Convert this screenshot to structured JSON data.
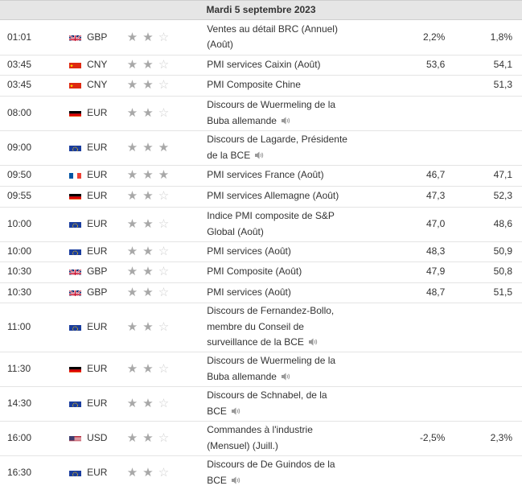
{
  "day_header": "Mardi 5 septembre 2023",
  "rows": [
    {
      "time": "01:01",
      "flag": "gb-flag-icon",
      "currency": "GBP",
      "stars": 2,
      "event_lines": [
        "Ventes au détail BRC (Annuel)",
        "(Août)"
      ],
      "speaker": false,
      "actual": "2,2%",
      "previous": "1,8%"
    },
    {
      "time": "03:45",
      "flag": "cn-flag-icon",
      "currency": "CNY",
      "stars": 2,
      "event_lines": [
        "PMI services Caixin (Août)"
      ],
      "speaker": false,
      "actual": "53,6",
      "previous": "54,1"
    },
    {
      "time": "03:45",
      "flag": "cn-flag-icon",
      "currency": "CNY",
      "stars": 2,
      "event_lines": [
        "PMI Composite Chine"
      ],
      "speaker": false,
      "actual": "",
      "previous": "51,3"
    },
    {
      "time": "08:00",
      "flag": "de-flag-icon",
      "currency": "EUR",
      "stars": 2,
      "event_lines": [
        "Discours de Wuermeling de la",
        "Buba allemande"
      ],
      "speaker": true,
      "actual": "",
      "previous": ""
    },
    {
      "time": "09:00",
      "flag": "eu-flag-icon",
      "currency": "EUR",
      "stars": 3,
      "event_lines": [
        "Discours de Lagarde, Présidente",
        "de la BCE"
      ],
      "speaker": true,
      "actual": "",
      "previous": ""
    },
    {
      "time": "09:50",
      "flag": "fr-flag-icon",
      "currency": "EUR",
      "stars": 3,
      "event_lines": [
        "PMI services France (Août)"
      ],
      "speaker": false,
      "actual": "46,7",
      "previous": "47,1"
    },
    {
      "time": "09:55",
      "flag": "de-flag-icon",
      "currency": "EUR",
      "stars": 2,
      "event_lines": [
        "PMI services Allemagne (Août)"
      ],
      "speaker": false,
      "actual": "47,3",
      "previous": "52,3"
    },
    {
      "time": "10:00",
      "flag": "eu-flag-icon",
      "currency": "EUR",
      "stars": 2,
      "event_lines": [
        "Indice PMI composite de S&P",
        "Global (Août)"
      ],
      "speaker": false,
      "actual": "47,0",
      "previous": "48,6"
    },
    {
      "time": "10:00",
      "flag": "eu-flag-icon",
      "currency": "EUR",
      "stars": 2,
      "event_lines": [
        "PMI services (Août)"
      ],
      "speaker": false,
      "actual": "48,3",
      "previous": "50,9"
    },
    {
      "time": "10:30",
      "flag": "gb-flag-icon",
      "currency": "GBP",
      "stars": 2,
      "event_lines": [
        "PMI Composite (Août)"
      ],
      "speaker": false,
      "actual": "47,9",
      "previous": "50,8"
    },
    {
      "time": "10:30",
      "flag": "gb-flag-icon",
      "currency": "GBP",
      "stars": 2,
      "event_lines": [
        "PMI services (Août)"
      ],
      "speaker": false,
      "actual": "48,7",
      "previous": "51,5"
    },
    {
      "time": "11:00",
      "flag": "eu-flag-icon",
      "currency": "EUR",
      "stars": 2,
      "event_lines": [
        "Discours de Fernandez-Bollo,",
        "membre du Conseil de",
        "surveillance de la BCE"
      ],
      "speaker": true,
      "actual": "",
      "previous": ""
    },
    {
      "time": "11:30",
      "flag": "de-flag-icon",
      "currency": "EUR",
      "stars": 2,
      "event_lines": [
        "Discours de Wuermeling de la",
        "Buba allemande"
      ],
      "speaker": true,
      "actual": "",
      "previous": ""
    },
    {
      "time": "14:30",
      "flag": "eu-flag-icon",
      "currency": "EUR",
      "stars": 2,
      "event_lines": [
        "Discours de Schnabel, de la",
        "BCE"
      ],
      "speaker": true,
      "actual": "",
      "previous": ""
    },
    {
      "time": "16:00",
      "flag": "us-flag-icon",
      "currency": "USD",
      "stars": 2,
      "event_lines": [
        "Commandes à l'industrie",
        "(Mensuel) (Juill.)"
      ],
      "speaker": false,
      "actual": "-2,5%",
      "previous": "2,3%"
    },
    {
      "time": "16:30",
      "flag": "eu-flag-icon",
      "currency": "EUR",
      "stars": 2,
      "event_lines": [
        "Discours de De Guindos de la",
        "BCE"
      ],
      "speaker": true,
      "actual": "",
      "previous": ""
    }
  ]
}
